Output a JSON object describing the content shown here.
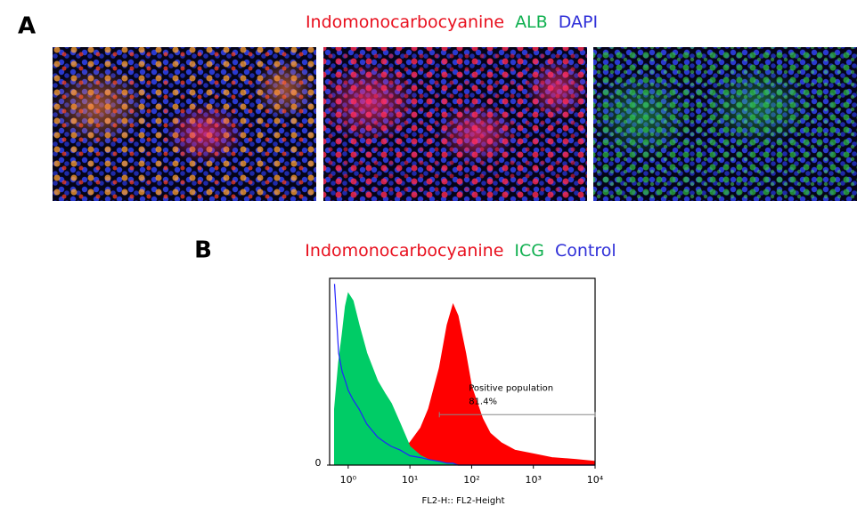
{
  "panel_a": {
    "label": "A",
    "legend": [
      {
        "text": "Indomonocarbocyanine",
        "color": "#e8101e"
      },
      {
        "text": "ALB",
        "color": "#10b050"
      },
      {
        "text": "DAPI",
        "color": "#3030d8"
      }
    ]
  },
  "panel_b": {
    "label": "B",
    "legend": [
      {
        "text": "Indomonocarbocyanine",
        "color": "#e8101e"
      },
      {
        "text": "ICG",
        "color": "#10b050"
      },
      {
        "text": "Control",
        "color": "#3030d8"
      }
    ]
  },
  "chart_data": {
    "type": "histogram-log",
    "x_label": "FL2-H:: FL2-Height",
    "xscale": "log",
    "x": [
      0.6,
      0.7,
      0.8,
      0.9,
      1,
      1.2,
      1.5,
      2,
      3,
      4,
      5,
      7,
      10,
      15,
      20,
      30,
      40,
      50,
      60,
      80,
      100,
      150,
      200,
      300,
      500,
      1000,
      2000,
      5000,
      10000
    ],
    "series": [
      {
        "name": "Indomonocarbocyanine",
        "color": "#ff0000",
        "fill": true,
        "values": [
          2,
          2,
          2,
          2,
          3,
          3,
          3,
          4,
          5,
          6,
          7,
          9,
          12,
          20,
          30,
          52,
          75,
          86,
          80,
          60,
          42,
          25,
          17,
          12,
          8,
          6,
          4,
          3,
          2
        ]
      },
      {
        "name": "ICG",
        "color": "#00cc66",
        "fill": true,
        "values": [
          30,
          55,
          70,
          85,
          92,
          88,
          75,
          60,
          45,
          38,
          33,
          22,
          10,
          5,
          3,
          2,
          1,
          1,
          0,
          0,
          0,
          0,
          0,
          0,
          0,
          0,
          0,
          0,
          0
        ]
      },
      {
        "name": "Control",
        "color": "#2222ff",
        "fill": false,
        "values": [
          97,
          60,
          50,
          45,
          40,
          35,
          30,
          22,
          15,
          12,
          10,
          8,
          5,
          4,
          3,
          2,
          1,
          1,
          0,
          0,
          0,
          0,
          0,
          0,
          0,
          0,
          0,
          0,
          0
        ]
      }
    ],
    "xlim": [
      0.5,
      10000
    ],
    "xticks": [
      {
        "value": 1,
        "label": "10⁰"
      },
      {
        "value": 10,
        "label": "10¹"
      },
      {
        "value": 100,
        "label": "10²"
      },
      {
        "value": 1000,
        "label": "10³"
      },
      {
        "value": 10000,
        "label": "10⁴"
      }
    ],
    "ylim": [
      0,
      100
    ],
    "yticks": [
      0
    ],
    "gate": {
      "name": "Positive population",
      "percent": "81.4%",
      "range": [
        30,
        10000
      ],
      "level": 27
    }
  }
}
